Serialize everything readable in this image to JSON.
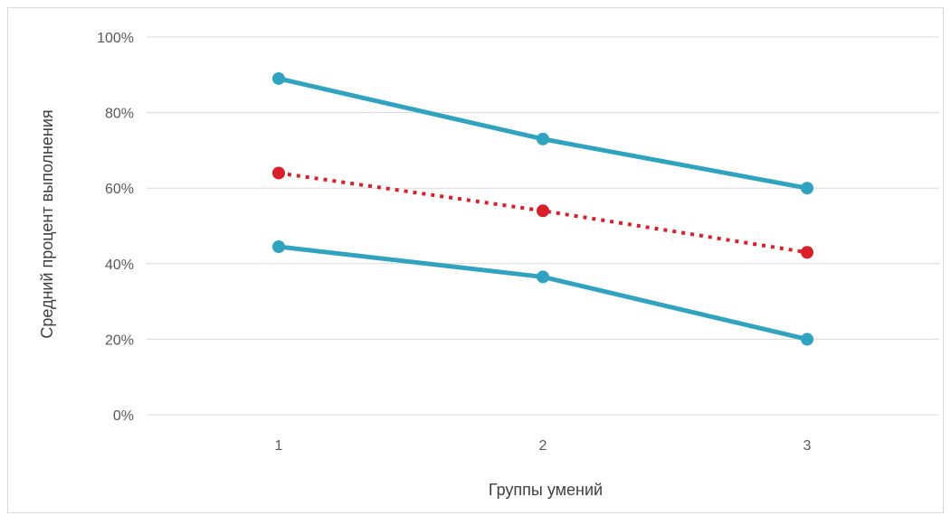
{
  "chart_data": {
    "type": "line",
    "categories": [
      "1",
      "2",
      "3"
    ],
    "xlabel": "Группы умений",
    "ylabel": "Средний процент выполнения",
    "ylim": [
      0,
      100
    ],
    "yticks": [
      0,
      20,
      40,
      60,
      80,
      100
    ],
    "ytick_labels": [
      "0%",
      "20%",
      "40%",
      "60%",
      "80%",
      "100%"
    ],
    "grid": true,
    "legend": "none",
    "series": [
      {
        "values": [
          89,
          73,
          60
        ],
        "color": "#2fa3bf",
        "style": "solid"
      },
      {
        "values": [
          64,
          54,
          43
        ],
        "color": "#d9202a",
        "style": "dotted"
      },
      {
        "values": [
          44.5,
          36.5,
          20
        ],
        "color": "#2fa3bf",
        "style": "solid"
      }
    ]
  }
}
